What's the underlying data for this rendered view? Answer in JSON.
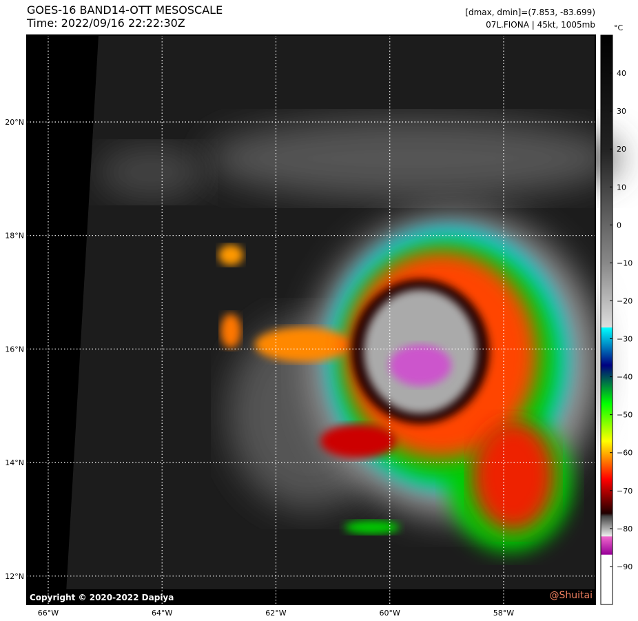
{
  "header": {
    "title": "GOES-16 BAND14-OTT MESOSCALE",
    "time": "Time: 2022/09/16 22:22:30Z",
    "range_info": "[dmax, dmin]=(7.853, -83.699)",
    "storm_info": "07L.FIONA | 45kt, 1005mb"
  },
  "map": {
    "xlim": [
      -66.375,
      -56.39
    ],
    "ylim": [
      11.5,
      21.53
    ],
    "lon_ticks": [
      {
        "value": -66,
        "label": "66°W"
      },
      {
        "value": -64,
        "label": "64°W"
      },
      {
        "value": -62,
        "label": "62°W"
      },
      {
        "value": -60,
        "label": "60°W"
      },
      {
        "value": -58,
        "label": "58°W"
      }
    ],
    "lat_ticks": [
      {
        "value": 12,
        "label": "12°N"
      },
      {
        "value": 14,
        "label": "14°N"
      },
      {
        "value": 16,
        "label": "16°N"
      },
      {
        "value": 18,
        "label": "18°N"
      },
      {
        "value": 20,
        "label": "20°N"
      }
    ],
    "copyright": "Copyright © 2020-2022 Dapiya",
    "watermark": "@Shuitai"
  },
  "colorbar": {
    "unit": "°C",
    "lim": [
      -100,
      50
    ],
    "ticks": [
      40,
      30,
      20,
      10,
      0,
      {
        "value": -10,
        "label": "−10"
      },
      {
        "value": -20,
        "label": "−20"
      },
      {
        "value": -30,
        "label": "−30"
      },
      {
        "value": -40,
        "label": "−40"
      },
      {
        "value": -50,
        "label": "−50"
      },
      {
        "value": -60,
        "label": "−60"
      },
      {
        "value": -70,
        "label": "−70"
      },
      {
        "value": -80,
        "label": "−80"
      },
      {
        "value": -90,
        "label": "−90"
      }
    ]
  }
}
